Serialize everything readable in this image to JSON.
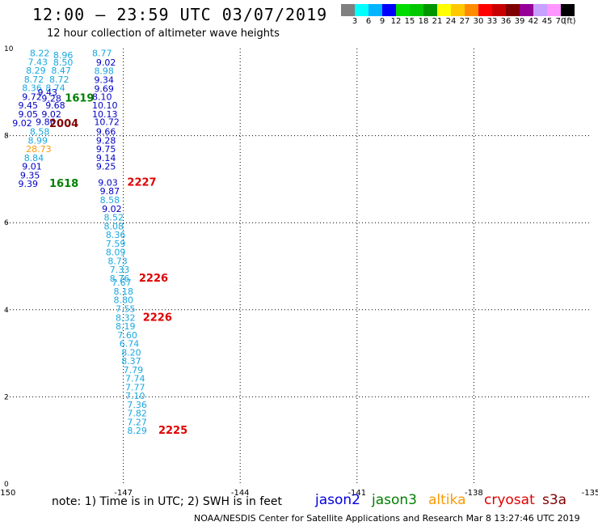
{
  "title": "12:00 – 23:59 UTC 03/07/2019",
  "subtitle": "12 hour collection of altimeter wave heights",
  "note": "note:  1) Time is in UTC;  2) SWH is in feet",
  "credit": "NOAA/NESDIS Center for Satellite Applications and Research    Mar  8 13:27:46 UTC 2019",
  "colorbar": {
    "colors": [
      "#808080",
      "#00ffff",
      "#00b4ff",
      "#0000ff",
      "#00dc00",
      "#00c800",
      "#009600",
      "#ffff00",
      "#ffc800",
      "#ff8c00",
      "#ff0000",
      "#c80000",
      "#800000",
      "#960096",
      "#c8a0ff",
      "#ff96ff",
      "#000000"
    ],
    "labels": [
      "3",
      "6",
      "9",
      "12",
      "15",
      "18",
      "21",
      "24",
      "27",
      "30",
      "33",
      "36",
      "39",
      "42",
      "45",
      "70",
      "(ft)"
    ]
  },
  "legend": [
    {
      "name": "jason2",
      "color": "#0000e0"
    },
    {
      "name": "jason3",
      "color": "#008000"
    },
    {
      "name": "altika",
      "color": "#ff9900"
    },
    {
      "name": "cryosat",
      "color": "#e00000"
    },
    {
      "name": "s3a",
      "color": "#800000"
    }
  ],
  "map": {
    "lon_min": -150,
    "lon_max": -135,
    "lat_min": 0,
    "lat_max": 10,
    "lon_ticks": [
      "-150",
      "-147",
      "-144",
      "-141",
      "-138",
      "-135"
    ],
    "lat_ticks": [
      "0",
      "2",
      "4",
      "6",
      "8",
      "10"
    ],
    "colors": {
      "jason2": "#0000c8",
      "jason3": "#008000",
      "altika": "#ff9900",
      "cryosat": "#e00000",
      "s3a": "#800000",
      "light": "#18a8e0"
    }
  },
  "observations": [
    {
      "lon": -149.4,
      "lat": 9.82,
      "v": "8.22",
      "c": "light"
    },
    {
      "lon": -148.8,
      "lat": 9.78,
      "v": "8.96",
      "c": "light"
    },
    {
      "lon": -147.8,
      "lat": 9.82,
      "v": "8.77",
      "c": "light"
    },
    {
      "lon": -149.45,
      "lat": 9.62,
      "v": "7.43",
      "c": "light"
    },
    {
      "lon": -148.8,
      "lat": 9.61,
      "v": "8.50",
      "c": "light"
    },
    {
      "lon": -147.7,
      "lat": 9.61,
      "v": "9.02",
      "c": "jason2"
    },
    {
      "lon": -149.5,
      "lat": 9.42,
      "v": "8.29",
      "c": "light"
    },
    {
      "lon": -148.85,
      "lat": 9.42,
      "v": "8.47",
      "c": "light"
    },
    {
      "lon": -147.75,
      "lat": 9.41,
      "v": "8.98",
      "c": "light"
    },
    {
      "lon": -149.55,
      "lat": 9.22,
      "v": "8.72",
      "c": "light"
    },
    {
      "lon": -148.9,
      "lat": 9.22,
      "v": "8.72",
      "c": "light"
    },
    {
      "lon": -147.75,
      "lat": 9.21,
      "v": "9.34",
      "c": "jason2"
    },
    {
      "lon": -149.6,
      "lat": 9.02,
      "v": "8.36",
      "c": "light"
    },
    {
      "lon": -149.0,
      "lat": 9.02,
      "v": "8.74",
      "c": "light"
    },
    {
      "lon": -147.75,
      "lat": 9.01,
      "v": "9.69",
      "c": "jason2"
    },
    {
      "lon": -149.2,
      "lat": 8.92,
      "v": "9.43",
      "c": "jason2"
    },
    {
      "lon": -149.6,
      "lat": 8.82,
      "v": "9.72",
      "c": "jason2"
    },
    {
      "lon": -149.1,
      "lat": 8.78,
      "v": "9.28",
      "c": "jason2"
    },
    {
      "lon": -148.5,
      "lat": 8.78,
      "v": "1619",
      "c": "jason3",
      "bold": true
    },
    {
      "lon": -147.8,
      "lat": 8.82,
      "v": "8.10",
      "c": "jason2"
    },
    {
      "lon": -149.7,
      "lat": 8.62,
      "v": "9.45",
      "c": "jason2"
    },
    {
      "lon": -149.0,
      "lat": 8.62,
      "v": "9.68",
      "c": "jason2"
    },
    {
      "lon": -147.8,
      "lat": 8.62,
      "v": "10.10",
      "c": "jason2"
    },
    {
      "lon": -149.7,
      "lat": 8.42,
      "v": "9.05",
      "c": "jason2"
    },
    {
      "lon": -149.1,
      "lat": 8.42,
      "v": "9.02",
      "c": "jason2"
    },
    {
      "lon": -147.8,
      "lat": 8.42,
      "v": "10.13",
      "c": "jason2"
    },
    {
      "lon": -149.85,
      "lat": 8.22,
      "v": "9.02",
      "c": "jason2"
    },
    {
      "lon": -149.25,
      "lat": 8.24,
      "v": "9.86",
      "c": "jason2"
    },
    {
      "lon": -148.9,
      "lat": 8.2,
      "v": "2004",
      "c": "s3a",
      "bold": true
    },
    {
      "lon": -147.75,
      "lat": 8.24,
      "v": "10.72",
      "c": "jason2"
    },
    {
      "lon": -149.4,
      "lat": 8.02,
      "v": "8.58",
      "c": "light"
    },
    {
      "lon": -147.7,
      "lat": 8.02,
      "v": "9.66",
      "c": "jason2"
    },
    {
      "lon": -149.45,
      "lat": 7.82,
      "v": "8.99",
      "c": "light"
    },
    {
      "lon": -147.7,
      "lat": 7.82,
      "v": "9.28",
      "c": "jason2"
    },
    {
      "lon": -149.5,
      "lat": 7.62,
      "v": "28.73",
      "c": "altika"
    },
    {
      "lon": -147.7,
      "lat": 7.62,
      "v": "9.75",
      "c": "jason2"
    },
    {
      "lon": -149.55,
      "lat": 7.42,
      "v": "8.84",
      "c": "light"
    },
    {
      "lon": -147.7,
      "lat": 7.42,
      "v": "9.14",
      "c": "jason2"
    },
    {
      "lon": -149.6,
      "lat": 7.22,
      "v": "9.01",
      "c": "jason2"
    },
    {
      "lon": -147.7,
      "lat": 7.22,
      "v": "9.25",
      "c": "jason2"
    },
    {
      "lon": -149.65,
      "lat": 7.02,
      "v": "9.35",
      "c": "jason2"
    },
    {
      "lon": -149.7,
      "lat": 6.82,
      "v": "9.39",
      "c": "jason2"
    },
    {
      "lon": -148.9,
      "lat": 6.82,
      "v": "1618",
      "c": "jason3",
      "bold": true
    },
    {
      "lon": -147.65,
      "lat": 6.85,
      "v": "9.03",
      "c": "jason2"
    },
    {
      "lon": -146.9,
      "lat": 6.85,
      "v": "2227",
      "c": "cryosat",
      "bold": true
    },
    {
      "lon": -147.6,
      "lat": 6.65,
      "v": "9.87",
      "c": "jason2"
    },
    {
      "lon": -147.6,
      "lat": 6.45,
      "v": "8.58",
      "c": "light"
    },
    {
      "lon": -147.55,
      "lat": 6.25,
      "v": "9.02",
      "c": "jason2"
    },
    {
      "lon": -147.5,
      "lat": 6.05,
      "v": "8.52",
      "c": "light"
    },
    {
      "lon": -147.5,
      "lat": 5.85,
      "v": "8.08",
      "c": "light"
    },
    {
      "lon": -147.45,
      "lat": 5.65,
      "v": "8.36",
      "c": "light"
    },
    {
      "lon": -147.45,
      "lat": 5.45,
      "v": "7.59",
      "c": "light"
    },
    {
      "lon": -147.45,
      "lat": 5.25,
      "v": "8.09",
      "c": "light"
    },
    {
      "lon": -147.4,
      "lat": 5.05,
      "v": "8.73",
      "c": "light"
    },
    {
      "lon": -147.35,
      "lat": 4.85,
      "v": "7.33",
      "c": "light"
    },
    {
      "lon": -147.35,
      "lat": 4.65,
      "v": "8.76",
      "c": "light"
    },
    {
      "lon": -146.6,
      "lat": 4.65,
      "v": "2226",
      "c": "cryosat",
      "bold": true
    },
    {
      "lon": -147.3,
      "lat": 4.55,
      "v": "7.67",
      "c": "light"
    },
    {
      "lon": -147.25,
      "lat": 4.35,
      "v": "8.18",
      "c": "light"
    },
    {
      "lon": -147.25,
      "lat": 4.15,
      "v": "8.80",
      "c": "light"
    },
    {
      "lon": -147.2,
      "lat": 3.95,
      "v": "7.55",
      "c": "light"
    },
    {
      "lon": -147.2,
      "lat": 3.75,
      "v": "8.32",
      "c": "light"
    },
    {
      "lon": -146.5,
      "lat": 3.75,
      "v": "2226",
      "c": "cryosat",
      "bold": true
    },
    {
      "lon": -147.2,
      "lat": 3.55,
      "v": "8.19",
      "c": "light"
    },
    {
      "lon": -147.15,
      "lat": 3.35,
      "v": "7.60",
      "c": "light"
    },
    {
      "lon": -147.1,
      "lat": 3.15,
      "v": "6.74",
      "c": "light"
    },
    {
      "lon": -147.05,
      "lat": 2.95,
      "v": "8.20",
      "c": "light"
    },
    {
      "lon": -147.05,
      "lat": 2.75,
      "v": "8.37",
      "c": "light"
    },
    {
      "lon": -147.0,
      "lat": 2.55,
      "v": "7.79",
      "c": "light"
    },
    {
      "lon": -146.95,
      "lat": 2.35,
      "v": "7.74",
      "c": "light"
    },
    {
      "lon": -146.95,
      "lat": 2.15,
      "v": "7.77",
      "c": "light"
    },
    {
      "lon": -146.95,
      "lat": 1.95,
      "v": "7.10",
      "c": "light"
    },
    {
      "lon": -146.9,
      "lat": 1.75,
      "v": "7.36",
      "c": "light"
    },
    {
      "lon": -146.9,
      "lat": 1.55,
      "v": "7.82",
      "c": "light"
    },
    {
      "lon": -146.9,
      "lat": 1.35,
      "v": "7.27",
      "c": "light"
    },
    {
      "lon": -146.9,
      "lat": 1.15,
      "v": "8.29",
      "c": "light"
    },
    {
      "lon": -146.1,
      "lat": 1.15,
      "v": "2225",
      "c": "cryosat",
      "bold": true
    }
  ]
}
